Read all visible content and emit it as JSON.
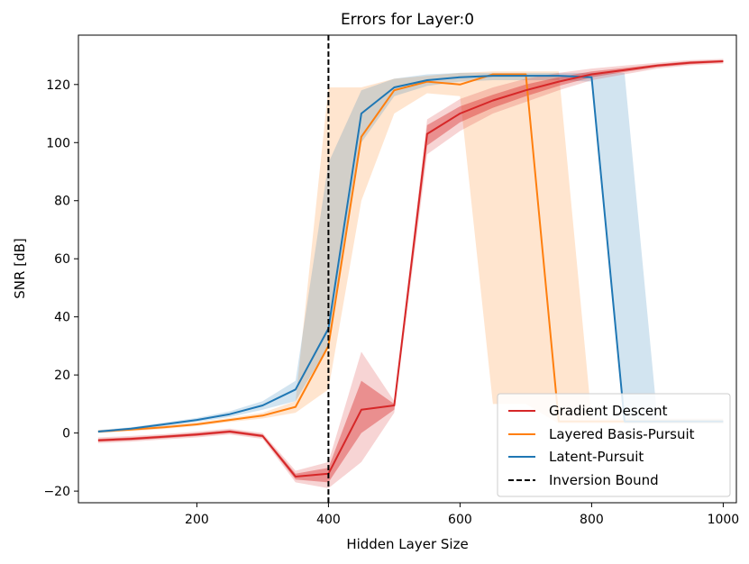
{
  "chart_data": {
    "type": "line",
    "title": "Errors for Layer:0",
    "xlabel": "Hidden Layer Size",
    "ylabel": "SNR [dB]",
    "xlim": [
      20,
      1020
    ],
    "ylim": [
      -24,
      137
    ],
    "xticks": [
      200,
      400,
      600,
      800,
      1000
    ],
    "yticks": [
      -20,
      0,
      20,
      40,
      60,
      80,
      100,
      120
    ],
    "grid": false,
    "legend_position": "lower-right",
    "series": [
      {
        "name": "Gradient Descent",
        "color": "#d62728",
        "x": [
          50,
          100,
          150,
          200,
          250,
          300,
          350,
          400,
          450,
          500,
          550,
          600,
          650,
          700,
          750,
          800,
          850,
          900,
          950,
          1000
        ],
        "y": [
          -2.5,
          -2,
          -1.3,
          -0.5,
          0.5,
          -1,
          -15,
          -14,
          8,
          9.5,
          103,
          110,
          114.5,
          118,
          121,
          123.5,
          125,
          126.5,
          127.5,
          128
        ],
        "band_inner": {
          "lower": [
            -3,
            -2.5,
            -1.8,
            -1,
            0,
            -1.5,
            -16,
            -17,
            0,
            8,
            99,
            107,
            112,
            116,
            119.5,
            122.5,
            124.3,
            126,
            127,
            127.6
          ],
          "upper": [
            -2,
            -1.5,
            -0.8,
            0,
            1,
            -0.5,
            -14,
            -12,
            18,
            10,
            106,
            112.5,
            116.5,
            120,
            122.5,
            124.5,
            125.7,
            127,
            128,
            128.4
          ]
        },
        "band_outer": {
          "lower": [
            -3.5,
            -3,
            -2.2,
            -1.5,
            -0.5,
            -2,
            -17,
            -19,
            -10,
            7,
            96,
            104,
            110,
            114,
            118,
            121.5,
            123.5,
            125.5,
            126.6,
            127.2
          ],
          "upper": [
            -1.5,
            -1,
            -0.4,
            0.5,
            1.5,
            0,
            -13,
            -10,
            28,
            11,
            108,
            115,
            119,
            122,
            124,
            125.5,
            126.5,
            127.5,
            128.4,
            128.8
          ]
        }
      },
      {
        "name": "Layered Basis-Pursuit",
        "color": "#ff7f0e",
        "x": [
          50,
          100,
          150,
          200,
          250,
          300,
          350,
          400,
          450,
          500,
          550,
          600,
          650,
          700,
          750,
          800,
          850,
          900,
          950,
          1000
        ],
        "y": [
          0.5,
          1.2,
          2,
          3,
          4.5,
          6,
          9,
          30,
          102,
          118,
          121,
          120,
          123.5,
          123.5,
          4,
          4,
          4,
          4,
          4,
          4
        ],
        "band_outer": {
          "lower": [
            0,
            0.6,
            1.4,
            2.4,
            3.8,
            5,
            7,
            15,
            80,
            110,
            117,
            116,
            10,
            10,
            3.2,
            3.2,
            3.2,
            3.2,
            3.2,
            3.2
          ],
          "upper": [
            1,
            1.8,
            2.6,
            3.6,
            5.2,
            7,
            11,
            119,
            119,
            122,
            123,
            124,
            124.5,
            124.5,
            124.5,
            5,
            5,
            5,
            5,
            5
          ]
        }
      },
      {
        "name": "Latent-Pursuit",
        "color": "#1f77b4",
        "x": [
          50,
          100,
          150,
          200,
          250,
          300,
          350,
          400,
          450,
          500,
          550,
          600,
          650,
          700,
          750,
          800,
          850,
          900,
          950,
          1000
        ],
        "y": [
          0.5,
          1.5,
          3,
          4.5,
          6.5,
          9.5,
          15,
          36,
          110,
          119,
          121.5,
          122.5,
          123,
          123,
          123,
          122.5,
          4,
          4,
          4,
          4
        ],
        "band_outer": {
          "lower": [
            0,
            1,
            2.4,
            3.8,
            5.5,
            8,
            11,
            30,
            100,
            116,
            119.5,
            121,
            121.5,
            121.5,
            121.5,
            121,
            3.2,
            3.2,
            3.2,
            3.2
          ],
          "upper": [
            1,
            2,
            3.6,
            5.2,
            7.5,
            11,
            18,
            93,
            118,
            122,
            123.5,
            124,
            124,
            124,
            124,
            124,
            124,
            4.8,
            4.8,
            4.8
          ]
        }
      }
    ],
    "vline": {
      "name": "Inversion Bound",
      "x": 400,
      "color": "#000000",
      "style": "dashed"
    }
  }
}
